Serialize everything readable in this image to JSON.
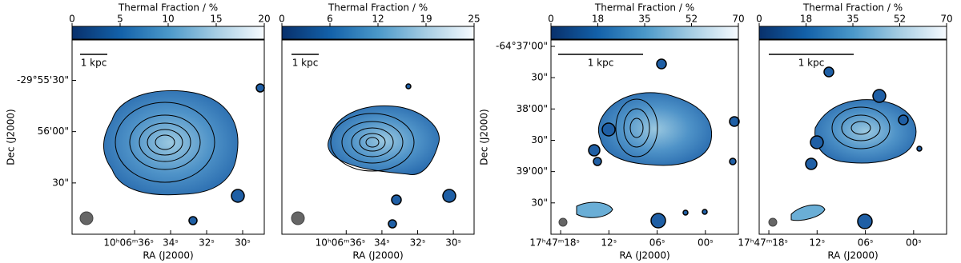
{
  "chart_data": [
    {
      "type": "map",
      "colorbar_label": "Thermal Fraction / %",
      "colorbar_lim": [
        0,
        20
      ],
      "colorbar_ticks": [
        0,
        5,
        10,
        15,
        20
      ],
      "xlabel": "RA (J2000)",
      "ylabel": "Dec (J2000)",
      "xlim": [
        39.47,
        28.8
      ],
      "xticks": [
        {
          "value": 36,
          "label": "10ʰ06ᵐ36ˢ"
        },
        {
          "value": 34,
          "label": "34ˢ"
        },
        {
          "value": 32,
          "label": "32ˢ"
        },
        {
          "value": 30,
          "label": "30ˢ"
        }
      ],
      "ylim": [
        -29.95,
        -29.91844
      ],
      "yticks": [
        {
          "value": -29.925,
          "label": "-29°55'30\""
        },
        {
          "value": -29.93333,
          "label": "56'00\""
        },
        {
          "value": -29.94167,
          "label": "30\""
        }
      ],
      "scale_bar_label": "1 kpc"
    },
    {
      "type": "map",
      "colorbar_label": "Thermal Fraction / %",
      "colorbar_lim": [
        0,
        25
      ],
      "colorbar_ticks": [
        0,
        {
          "value": 6.25,
          "label": "6"
        },
        {
          "value": 12.5,
          "label": "12"
        },
        {
          "value": 18.75,
          "label": "19"
        },
        25
      ],
      "xlabel": "RA (J2000)",
      "xlim": [
        39.6,
        28.84
      ],
      "xticks": [
        {
          "value": 36,
          "label": "10ʰ06ᵐ36ˢ"
        },
        {
          "value": 34,
          "label": "34ˢ"
        },
        {
          "value": 32,
          "label": "32ˢ"
        },
        {
          "value": 30,
          "label": "30ˢ"
        }
      ],
      "scale_bar_label": "1 kpc"
    },
    {
      "type": "map",
      "colorbar_label": "Thermal Fraction / %",
      "colorbar_lim": [
        0,
        70
      ],
      "colorbar_ticks": [
        0,
        {
          "value": 17.5,
          "label": "18"
        },
        35,
        {
          "value": 52.5,
          "label": "52"
        },
        70
      ],
      "xlabel": "RA (J2000)",
      "ylabel": "Dec (J2000)",
      "xlim": [
        19.2,
        -4.1
      ],
      "xticks": [
        {
          "value": 18,
          "label": "17ʰ47ᵐ18ˢ"
        },
        {
          "value": 12,
          "label": "12ˢ"
        },
        {
          "value": 6,
          "label": "06ˢ"
        },
        {
          "value": 0,
          "label": "00ˢ"
        }
      ],
      "ylim": [
        -64.66667,
        -64.61497
      ],
      "yticks": [
        {
          "value": -64.61667,
          "label": "-64°37'00\""
        },
        {
          "value": -64.625,
          "label": "30\""
        },
        {
          "value": -64.63333,
          "label": "38'00\""
        },
        {
          "value": -64.64167,
          "label": "30\""
        },
        {
          "value": -64.65,
          "label": "39'00\""
        },
        {
          "value": -64.65833,
          "label": "30\""
        }
      ],
      "scale_bar_label": "1 kpc"
    },
    {
      "type": "map",
      "colorbar_label": "Thermal Fraction / %",
      "colorbar_lim": [
        0,
        70
      ],
      "colorbar_ticks": [
        0,
        {
          "value": 17.5,
          "label": "18"
        },
        35,
        {
          "value": 52.5,
          "label": "52"
        },
        70
      ],
      "xlabel": "RA (J2000)",
      "xlim": [
        19.2,
        -4.1
      ],
      "xticks": [
        {
          "value": 18,
          "label": "17ʰ47ᵐ18ˢ"
        },
        {
          "value": 12,
          "label": "12ˢ"
        },
        {
          "value": 6,
          "label": "06ˢ"
        },
        {
          "value": 0,
          "label": "00ˢ"
        }
      ],
      "scale_bar_label": "1 kpc"
    }
  ]
}
